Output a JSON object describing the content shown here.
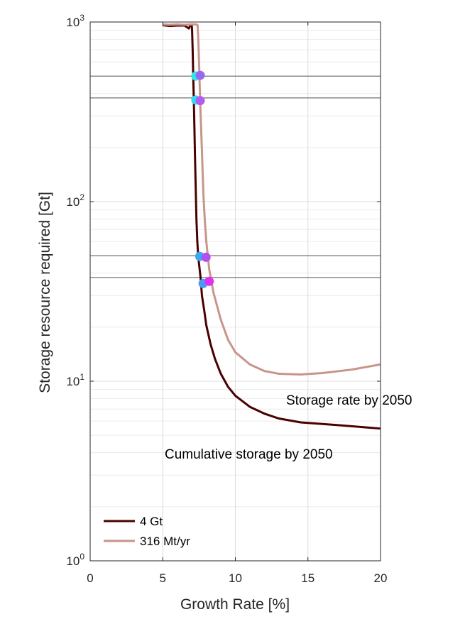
{
  "chart_data": {
    "type": "line",
    "xlabel": "Growth Rate [%]",
    "ylabel": "Storage resource required [Gt]",
    "xlim": [
      0,
      20
    ],
    "ylim": [
      1,
      1000
    ],
    "y_scale": "log",
    "grid": true,
    "x_ticks": [
      "0",
      "5",
      "10",
      "15",
      "20"
    ],
    "y_ticks": [
      {
        "base": "10",
        "exp": "0"
      },
      {
        "base": "10",
        "exp": "1"
      },
      {
        "base": "10",
        "exp": "2"
      },
      {
        "base": "10",
        "exp": "3"
      }
    ],
    "series": [
      {
        "name": "4 Gt",
        "color": "#4a0000",
        "x": [
          5.0,
          5.5,
          6.0,
          6.5,
          6.8,
          6.9,
          7.0,
          7.02,
          7.06,
          7.1,
          7.14,
          7.18,
          7.22,
          7.27,
          7.32,
          7.38,
          7.44,
          7.5,
          7.6,
          7.7,
          7.85,
          8.0,
          8.3,
          8.6,
          9.0,
          9.5,
          10.0,
          11.0,
          12.0,
          13.0,
          14.5,
          17.0,
          20.0
        ],
        "y": [
          960,
          950,
          955,
          955,
          920,
          960,
          960,
          900,
          700,
          500,
          370,
          260,
          180,
          120,
          80,
          60,
          50,
          45,
          38,
          30,
          25,
          20.5,
          16,
          13.3,
          11,
          9.3,
          8.3,
          7.2,
          6.6,
          6.2,
          5.9,
          5.7,
          5.45
        ]
      },
      {
        "name": "316 Mt/yr",
        "color": "#c8958a",
        "x": [
          5.0,
          5.5,
          6.0,
          6.5,
          7.0,
          7.3,
          7.4,
          7.45,
          7.5,
          7.55,
          7.6,
          7.7,
          7.8,
          7.9,
          8.0,
          8.2,
          8.5,
          9.0,
          9.5,
          10.0,
          11.0,
          12.0,
          13.0,
          14.5,
          16.0,
          18.0,
          20.0
        ],
        "y": [
          970,
          965,
          970,
          965,
          970,
          970,
          960,
          800,
          600,
          430,
          320,
          190,
          110,
          78,
          60,
          42,
          31,
          22,
          17,
          14.5,
          12.4,
          11.4,
          11.0,
          10.9,
          11.1,
          11.6,
          12.4
        ]
      }
    ],
    "reference_lines_y": [
      500,
      378,
      50,
      37.8
    ],
    "markers": [
      {
        "x": 7.28,
        "y": 500,
        "color": "#2ee6ee"
      },
      {
        "x": 7.58,
        "y": 505,
        "color": "#9a67f0"
      },
      {
        "x": 7.28,
        "y": 368,
        "color": "#36d8f0"
      },
      {
        "x": 7.58,
        "y": 365,
        "color": "#b35cf2"
      },
      {
        "x": 7.55,
        "y": 49.5,
        "color": "#3aaaf0"
      },
      {
        "x": 7.98,
        "y": 49.0,
        "color": "#b24ef2"
      },
      {
        "x": 7.78,
        "y": 35.0,
        "color": "#4b9af2"
      },
      {
        "x": 8.2,
        "y": 36.0,
        "color": "#e030f0"
      }
    ],
    "annotations": [
      "Storage rate by 2050",
      "Cumulative storage by 2050"
    ],
    "legend": {
      "placement": "bottom-left"
    }
  }
}
